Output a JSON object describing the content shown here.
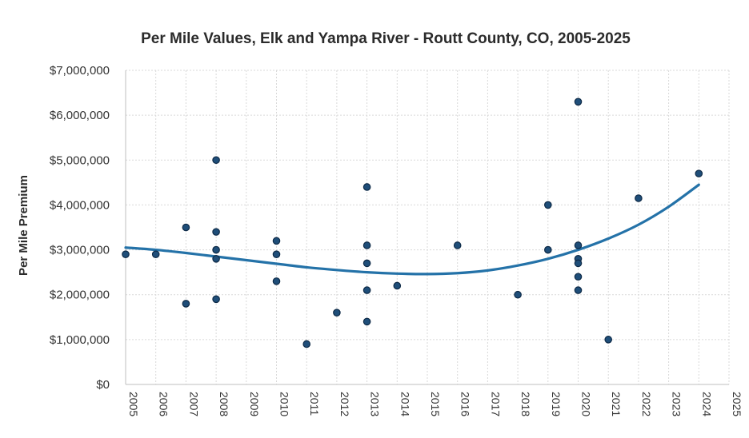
{
  "chart_data": {
    "type": "scatter",
    "title": "Per Mile Values, Elk and Yampa River - Routt County, CO, 2005-2025",
    "xlabel": "",
    "ylabel": "Per Mile Premium",
    "xlim": [
      2005,
      2025
    ],
    "ylim": [
      0,
      7000000
    ],
    "grid": true,
    "legend": "none",
    "x_ticks": [
      "2005",
      "2006",
      "2007",
      "2008",
      "2009",
      "2010",
      "2011",
      "2012",
      "2013",
      "2014",
      "2015",
      "2016",
      "2017",
      "2018",
      "2019",
      "2020",
      "2021",
      "2022",
      "2023",
      "2024",
      "2025"
    ],
    "y_ticks": [
      "$0",
      "$1,000,000",
      "$2,000,000",
      "$3,000,000",
      "$4,000,000",
      "$5,000,000",
      "$6,000,000",
      "$7,000,000"
    ],
    "series": [
      {
        "name": "Per Mile Premium",
        "points": [
          {
            "x": 2005,
            "y": 2900000
          },
          {
            "x": 2006,
            "y": 2900000
          },
          {
            "x": 2007,
            "y": 3500000
          },
          {
            "x": 2007,
            "y": 1800000
          },
          {
            "x": 2008,
            "y": 5000000
          },
          {
            "x": 2008,
            "y": 3400000
          },
          {
            "x": 2008,
            "y": 3000000
          },
          {
            "x": 2008,
            "y": 2800000
          },
          {
            "x": 2008,
            "y": 1900000
          },
          {
            "x": 2010,
            "y": 3200000
          },
          {
            "x": 2010,
            "y": 2900000
          },
          {
            "x": 2010,
            "y": 2300000
          },
          {
            "x": 2011,
            "y": 900000
          },
          {
            "x": 2012,
            "y": 1600000
          },
          {
            "x": 2013,
            "y": 4400000
          },
          {
            "x": 2013,
            "y": 3100000
          },
          {
            "x": 2013,
            "y": 2700000
          },
          {
            "x": 2013,
            "y": 2100000
          },
          {
            "x": 2013,
            "y": 1400000
          },
          {
            "x": 2014,
            "y": 2200000
          },
          {
            "x": 2016,
            "y": 3100000
          },
          {
            "x": 2018,
            "y": 2000000
          },
          {
            "x": 2019,
            "y": 4000000
          },
          {
            "x": 2019,
            "y": 3000000
          },
          {
            "x": 2020,
            "y": 6300000
          },
          {
            "x": 2020,
            "y": 3100000
          },
          {
            "x": 2020,
            "y": 2800000
          },
          {
            "x": 2020,
            "y": 2700000
          },
          {
            "x": 2020,
            "y": 2400000
          },
          {
            "x": 2020,
            "y": 2100000
          },
          {
            "x": 2021,
            "y": 1000000
          },
          {
            "x": 2022,
            "y": 4150000
          },
          {
            "x": 2024,
            "y": 4700000
          }
        ]
      }
    ],
    "trendline": {
      "type": "polynomial",
      "points": [
        {
          "x": 2005,
          "y": 3050000
        },
        {
          "x": 2006,
          "y": 3000000
        },
        {
          "x": 2007,
          "y": 2930000
        },
        {
          "x": 2008,
          "y": 2850000
        },
        {
          "x": 2009,
          "y": 2770000
        },
        {
          "x": 2010,
          "y": 2690000
        },
        {
          "x": 2011,
          "y": 2610000
        },
        {
          "x": 2012,
          "y": 2550000
        },
        {
          "x": 2013,
          "y": 2500000
        },
        {
          "x": 2014,
          "y": 2470000
        },
        {
          "x": 2015,
          "y": 2460000
        },
        {
          "x": 2016,
          "y": 2480000
        },
        {
          "x": 2017,
          "y": 2540000
        },
        {
          "x": 2018,
          "y": 2650000
        },
        {
          "x": 2019,
          "y": 2800000
        },
        {
          "x": 2020,
          "y": 3000000
        },
        {
          "x": 2021,
          "y": 3250000
        },
        {
          "x": 2022,
          "y": 3560000
        },
        {
          "x": 2023,
          "y": 3960000
        },
        {
          "x": 2024,
          "y": 4450000
        }
      ]
    },
    "colors": {
      "points": "#1f4e79",
      "trendline": "#2472a8"
    }
  }
}
